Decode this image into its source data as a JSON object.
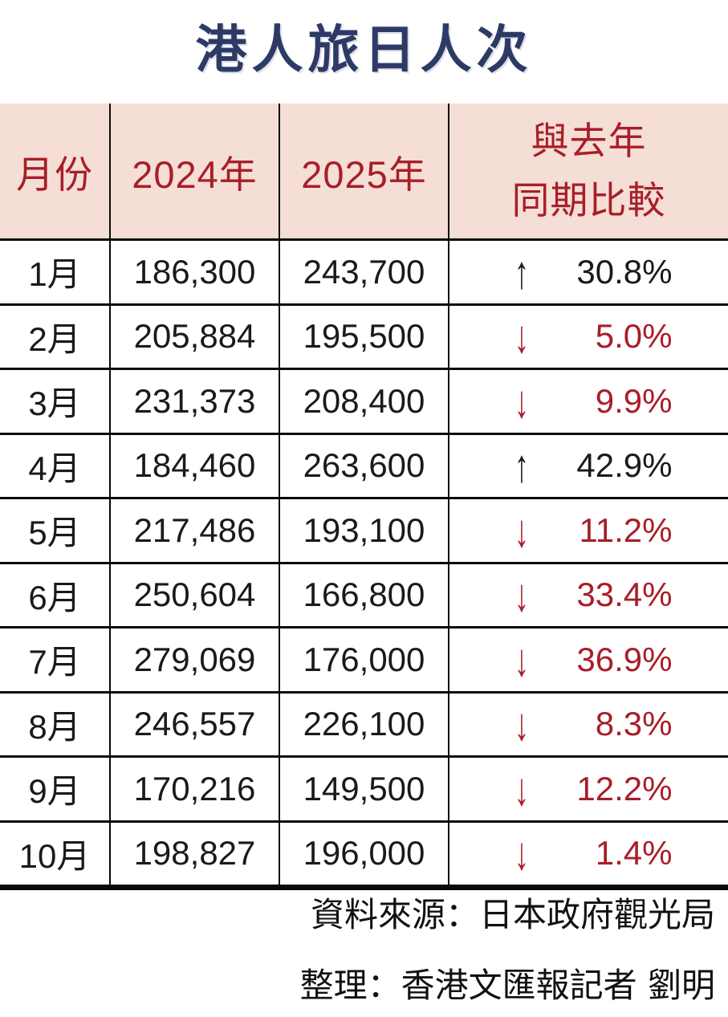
{
  "title": "港人旅日人次",
  "colors": {
    "title_navy": "#2e3a66",
    "header_pink": "#f4ded5",
    "accent_red": "#a81e29",
    "text_black": "#1a1a1a"
  },
  "table": {
    "headers": {
      "month": "月份",
      "y2024": "2024年",
      "y2025": "2025年",
      "compare_line1": "與去年",
      "compare_line2": "同期比較"
    },
    "rows": [
      {
        "month": "1月",
        "y2024": "186,300",
        "y2025": "243,700",
        "arrow": "↑",
        "change": "30.8%",
        "direction": "up"
      },
      {
        "month": "2月",
        "y2024": "205,884",
        "y2025": "195,500",
        "arrow": "↓",
        "change": "5.0%",
        "direction": "down"
      },
      {
        "month": "3月",
        "y2024": "231,373",
        "y2025": "208,400",
        "arrow": "↓",
        "change": "9.9%",
        "direction": "down"
      },
      {
        "month": "4月",
        "y2024": "184,460",
        "y2025": "263,600",
        "arrow": "↑",
        "change": "42.9%",
        "direction": "up"
      },
      {
        "month": "5月",
        "y2024": "217,486",
        "y2025": "193,100",
        "arrow": "↓",
        "change": "11.2%",
        "direction": "down"
      },
      {
        "month": "6月",
        "y2024": "250,604",
        "y2025": "166,800",
        "arrow": "↓",
        "change": "33.4%",
        "direction": "down"
      },
      {
        "month": "7月",
        "y2024": "279,069",
        "y2025": "176,000",
        "arrow": "↓",
        "change": "36.9%",
        "direction": "down"
      },
      {
        "month": "8月",
        "y2024": "246,557",
        "y2025": "226,100",
        "arrow": "↓",
        "change": "8.3%",
        "direction": "down"
      },
      {
        "month": "9月",
        "y2024": "170,216",
        "y2025": "149,500",
        "arrow": "↓",
        "change": "12.2%",
        "direction": "down"
      },
      {
        "month": "10月",
        "y2024": "198,827",
        "y2025": "196,000",
        "arrow": "↓",
        "change": "1.4%",
        "direction": "down"
      }
    ]
  },
  "footer": {
    "source": "資料來源：日本政府觀光局",
    "credit": "整理：香港文匯報記者 劉明"
  },
  "chart_data": {
    "type": "table",
    "title": "港人旅日人次",
    "columns": [
      "月份",
      "2024年",
      "2025年",
      "與去年同期比較"
    ],
    "categories": [
      "1月",
      "2月",
      "3月",
      "4月",
      "5月",
      "6月",
      "7月",
      "8月",
      "9月",
      "10月"
    ],
    "series": [
      {
        "name": "2024年",
        "values": [
          186300,
          205884,
          231373,
          184460,
          217486,
          250604,
          279069,
          246557,
          170216,
          198827
        ]
      },
      {
        "name": "2025年",
        "values": [
          243700,
          195500,
          208400,
          263600,
          193100,
          166800,
          176000,
          226100,
          149500,
          196000
        ]
      },
      {
        "name": "與去年同期比較(%)",
        "values": [
          30.8,
          -5.0,
          -9.9,
          42.9,
          -11.2,
          -33.4,
          -36.9,
          -8.3,
          -12.2,
          -1.4
        ]
      }
    ]
  }
}
